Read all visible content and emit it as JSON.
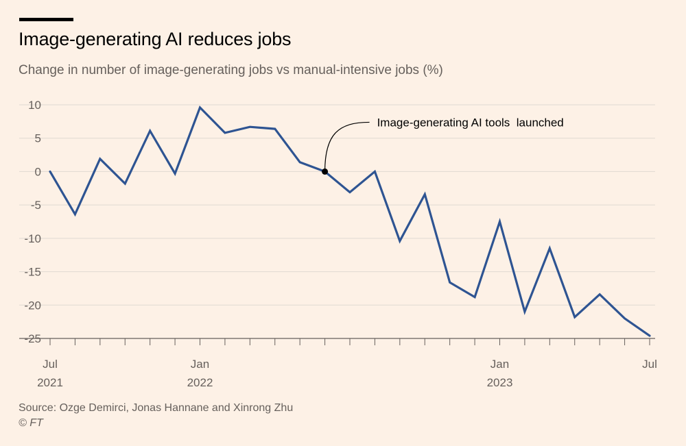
{
  "header": {
    "title": "Image-generating AI reduces jobs",
    "subtitle": "Change in number of image-generating jobs vs manual-intensive jobs (%)"
  },
  "footer": {
    "source": "Source: Ozge Demirci, Jonas Hannane and Xinrong Zhu",
    "credit": "© FT"
  },
  "colors": {
    "background": "#fdf1e6",
    "line": "#2e5492",
    "grid": "#e0d9d2",
    "axis": "#66605c"
  },
  "chart_data": {
    "type": "line",
    "title": "Image-generating AI reduces jobs",
    "subtitle": "Change in number of image-generating jobs vs manual-intensive jobs (%)",
    "x": [
      "2021-07",
      "2021-08",
      "2021-09",
      "2021-10",
      "2021-11",
      "2021-12",
      "2022-01",
      "2022-02",
      "2022-03",
      "2022-04",
      "2022-05",
      "2022-06",
      "2022-07",
      "2022-08",
      "2022-09",
      "2022-10",
      "2022-11",
      "2022-12",
      "2023-01",
      "2023-02",
      "2023-03",
      "2023-04",
      "2023-05",
      "2023-06",
      "2023-07"
    ],
    "series": [
      {
        "values": [
          0,
          -6.4,
          1.9,
          -1.8,
          6.1,
          -0.3,
          9.6,
          5.8,
          6.7,
          6.4,
          1.4,
          0,
          -3.1,
          0,
          -10.4,
          -3.4,
          -16.6,
          -18.8,
          -7.5,
          -21,
          -11.5,
          -21.8,
          -18.4,
          -22,
          -24.6
        ]
      }
    ],
    "ylim": [
      -25,
      10
    ],
    "yticks": [
      10,
      5,
      0,
      -5,
      -10,
      -15,
      -20,
      -25
    ],
    "ytick_labels": [
      "10",
      "5",
      "0",
      "-5",
      "-10",
      "-15",
      "-20",
      "-25"
    ],
    "xticks": [
      {
        "x": "2021-07",
        "label": "Jul",
        "year": "2021"
      },
      {
        "x": "2022-01",
        "label": "Jan",
        "year": "2022"
      },
      {
        "x": "2023-01",
        "label": "Jan",
        "year": "2023"
      },
      {
        "x": "2023-07",
        "label": "Jul",
        "year": ""
      }
    ],
    "annotation": {
      "x": "2022-06",
      "y": 0,
      "text": "Image-generating AI tools  launched"
    },
    "grid": true,
    "legend": "none"
  }
}
